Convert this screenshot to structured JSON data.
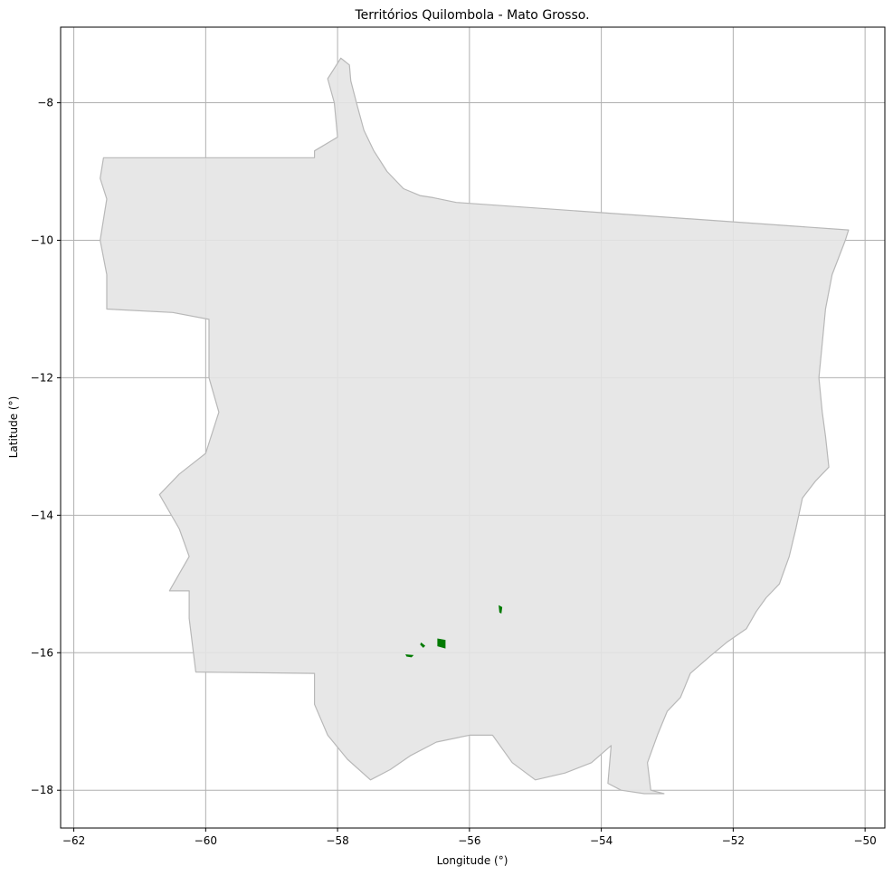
{
  "title": "Territórios Quilombola - Mato Grosso.",
  "xlabel": "Longitude (°)",
  "ylabel": "Latitude (°)",
  "x_ticks": [
    {
      "value": -62,
      "label": "−62"
    },
    {
      "value": -60,
      "label": "−60"
    },
    {
      "value": -58,
      "label": "−58"
    },
    {
      "value": -56,
      "label": "−56"
    },
    {
      "value": -54,
      "label": "−54"
    },
    {
      "value": -52,
      "label": "−52"
    },
    {
      "value": -50,
      "label": "−50"
    }
  ],
  "y_ticks": [
    {
      "value": -8,
      "label": "−8"
    },
    {
      "value": -10,
      "label": "−10"
    },
    {
      "value": -12,
      "label": "−12"
    },
    {
      "value": -14,
      "label": "−14"
    },
    {
      "value": -16,
      "label": "−16"
    },
    {
      "value": -18,
      "label": "−18"
    }
  ],
  "chart_data": {
    "type": "map",
    "title": "Territórios Quilombola - Mato Grosso.",
    "xlabel": "Longitude (°)",
    "ylabel": "Latitude (°)",
    "xlim": [
      -62.2,
      -49.7
    ],
    "ylim": [
      -18.55,
      -6.9
    ],
    "grid": true,
    "colors": {
      "state_fill": "#e4e4e4",
      "state_edge": "#b8b8b8",
      "territory_fill": "#007a00",
      "grid": "#b0b0b0"
    },
    "state_outline": [
      [
        -57.95,
        -7.35
      ],
      [
        -57.82,
        -7.45
      ],
      [
        -57.8,
        -7.68
      ],
      [
        -57.7,
        -8.05
      ],
      [
        -57.6,
        -8.4
      ],
      [
        -57.45,
        -8.7
      ],
      [
        -57.25,
        -9.0
      ],
      [
        -57.0,
        -9.25
      ],
      [
        -56.75,
        -9.35
      ],
      [
        -56.55,
        -9.38
      ],
      [
        -56.2,
        -9.45
      ],
      [
        -50.25,
        -9.85
      ],
      [
        -50.3,
        -10.0
      ],
      [
        -50.5,
        -10.5
      ],
      [
        -50.6,
        -11.0
      ],
      [
        -50.65,
        -11.5
      ],
      [
        -50.7,
        -12.0
      ],
      [
        -50.65,
        -12.5
      ],
      [
        -50.6,
        -12.85
      ],
      [
        -50.55,
        -13.3
      ],
      [
        -50.75,
        -13.5
      ],
      [
        -50.95,
        -13.75
      ],
      [
        -51.05,
        -14.2
      ],
      [
        -51.15,
        -14.6
      ],
      [
        -51.3,
        -15.0
      ],
      [
        -51.5,
        -15.2
      ],
      [
        -51.65,
        -15.4
      ],
      [
        -51.8,
        -15.65
      ],
      [
        -52.1,
        -15.85
      ],
      [
        -52.35,
        -16.05
      ],
      [
        -52.65,
        -16.3
      ],
      [
        -52.8,
        -16.65
      ],
      [
        -53.0,
        -16.85
      ],
      [
        -53.15,
        -17.2
      ],
      [
        -53.3,
        -17.6
      ],
      [
        -53.25,
        -18.0
      ],
      [
        -53.05,
        -18.05
      ],
      [
        -53.35,
        -18.05
      ],
      [
        -53.7,
        -18.0
      ],
      [
        -53.9,
        -17.9
      ],
      [
        -53.85,
        -17.35
      ],
      [
        -54.15,
        -17.6
      ],
      [
        -54.55,
        -17.75
      ],
      [
        -55.0,
        -17.85
      ],
      [
        -55.35,
        -17.6
      ],
      [
        -55.65,
        -17.2
      ],
      [
        -56.0,
        -17.2
      ],
      [
        -56.5,
        -17.3
      ],
      [
        -56.9,
        -17.5
      ],
      [
        -57.2,
        -17.7
      ],
      [
        -57.5,
        -17.85
      ],
      [
        -57.85,
        -17.55
      ],
      [
        -58.15,
        -17.2
      ],
      [
        -58.35,
        -16.75
      ],
      [
        -58.35,
        -16.3
      ],
      [
        -60.15,
        -16.28
      ],
      [
        -60.25,
        -15.5
      ],
      [
        -60.25,
        -15.1
      ],
      [
        -60.55,
        -15.1
      ],
      [
        -60.25,
        -14.6
      ],
      [
        -60.4,
        -14.2
      ],
      [
        -60.7,
        -13.7
      ],
      [
        -60.4,
        -13.4
      ],
      [
        -60.0,
        -13.1
      ],
      [
        -59.8,
        -12.5
      ],
      [
        -59.95,
        -12.0
      ],
      [
        -59.95,
        -11.4
      ],
      [
        -59.95,
        -11.15
      ],
      [
        -60.5,
        -11.05
      ],
      [
        -61.5,
        -11.0
      ],
      [
        -61.5,
        -10.5
      ],
      [
        -61.6,
        -10.0
      ],
      [
        -61.5,
        -9.4
      ],
      [
        -61.6,
        -9.1
      ],
      [
        -61.55,
        -8.8
      ],
      [
        -58.35,
        -8.8
      ],
      [
        -58.35,
        -8.7
      ],
      [
        -58.0,
        -8.5
      ],
      [
        -58.05,
        -8.0
      ],
      [
        -58.15,
        -7.65
      ],
      [
        -57.95,
        -7.35
      ]
    ],
    "territories": [
      {
        "polygon": [
          [
            -56.48,
            -15.8
          ],
          [
            -56.37,
            -15.82
          ],
          [
            -56.37,
            -15.93
          ],
          [
            -56.48,
            -15.9
          ]
        ]
      },
      {
        "polygon": [
          [
            -55.55,
            -15.32
          ],
          [
            -55.51,
            -15.34
          ],
          [
            -55.52,
            -15.42
          ],
          [
            -55.54,
            -15.41
          ]
        ]
      },
      {
        "polygon": [
          [
            -56.73,
            -15.86
          ],
          [
            -56.68,
            -15.9
          ],
          [
            -56.7,
            -15.92
          ],
          [
            -56.74,
            -15.88
          ]
        ]
      },
      {
        "polygon": [
          [
            -56.96,
            -16.03
          ],
          [
            -56.86,
            -16.04
          ],
          [
            -56.88,
            -16.06
          ],
          [
            -56.95,
            -16.05
          ]
        ]
      }
    ]
  }
}
